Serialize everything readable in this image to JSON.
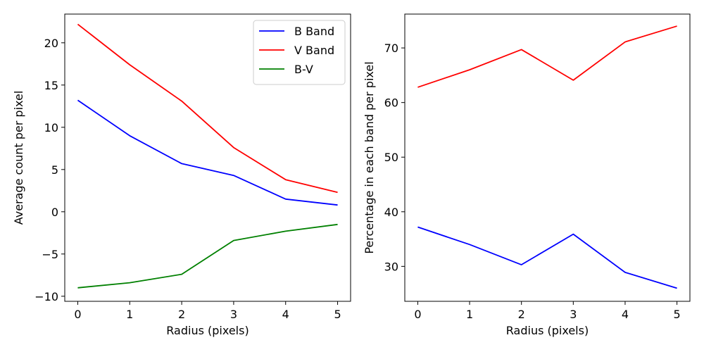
{
  "chart_data": [
    {
      "type": "line",
      "xlabel": "Radius (pixels)",
      "ylabel": "Average count per pixel",
      "x": [
        0,
        1,
        2,
        3,
        4,
        5
      ],
      "xlim": [
        -0.25,
        5.25
      ],
      "ylim": [
        -10.6,
        23.4
      ],
      "xticks": [
        0,
        1,
        2,
        3,
        4,
        5
      ],
      "xtick_labels": [
        "0",
        "1",
        "2",
        "3",
        "4",
        "5"
      ],
      "yticks": [
        -10,
        -5,
        0,
        5,
        10,
        15,
        20
      ],
      "ytick_labels": [
        "−10",
        "−5",
        "0",
        "5",
        "10",
        "15",
        "20"
      ],
      "grid": false,
      "legend_position": "top-right",
      "series": [
        {
          "name": "B Band",
          "color": "#0000ff",
          "values": [
            13.2,
            9.0,
            5.7,
            4.3,
            1.5,
            0.8
          ]
        },
        {
          "name": "V Band",
          "color": "#ff0000",
          "values": [
            22.2,
            17.4,
            13.1,
            7.6,
            3.8,
            2.3
          ]
        },
        {
          "name": "B-V",
          "color": "#008000",
          "values": [
            -9.0,
            -8.4,
            -7.4,
            -3.4,
            -2.3,
            -1.5
          ]
        }
      ]
    },
    {
      "type": "line",
      "xlabel": "Radius (pixels)",
      "ylabel": "Percentage in each band per pixel",
      "x": [
        0,
        1,
        2,
        3,
        4,
        5
      ],
      "xlim": [
        -0.25,
        5.25
      ],
      "ylim": [
        23.6,
        76.2
      ],
      "xticks": [
        0,
        1,
        2,
        3,
        4,
        5
      ],
      "xtick_labels": [
        "0",
        "1",
        "2",
        "3",
        "4",
        "5"
      ],
      "yticks": [
        30,
        40,
        50,
        60,
        70
      ],
      "ytick_labels": [
        "30",
        "40",
        "50",
        "60",
        "70"
      ],
      "grid": false,
      "series": [
        {
          "color": "#0000ff",
          "values": [
            37.2,
            34.0,
            30.3,
            35.9,
            28.9,
            26.0
          ]
        },
        {
          "color": "#ff0000",
          "values": [
            62.8,
            66.0,
            69.7,
            64.1,
            71.1,
            74.0
          ]
        }
      ]
    }
  ]
}
